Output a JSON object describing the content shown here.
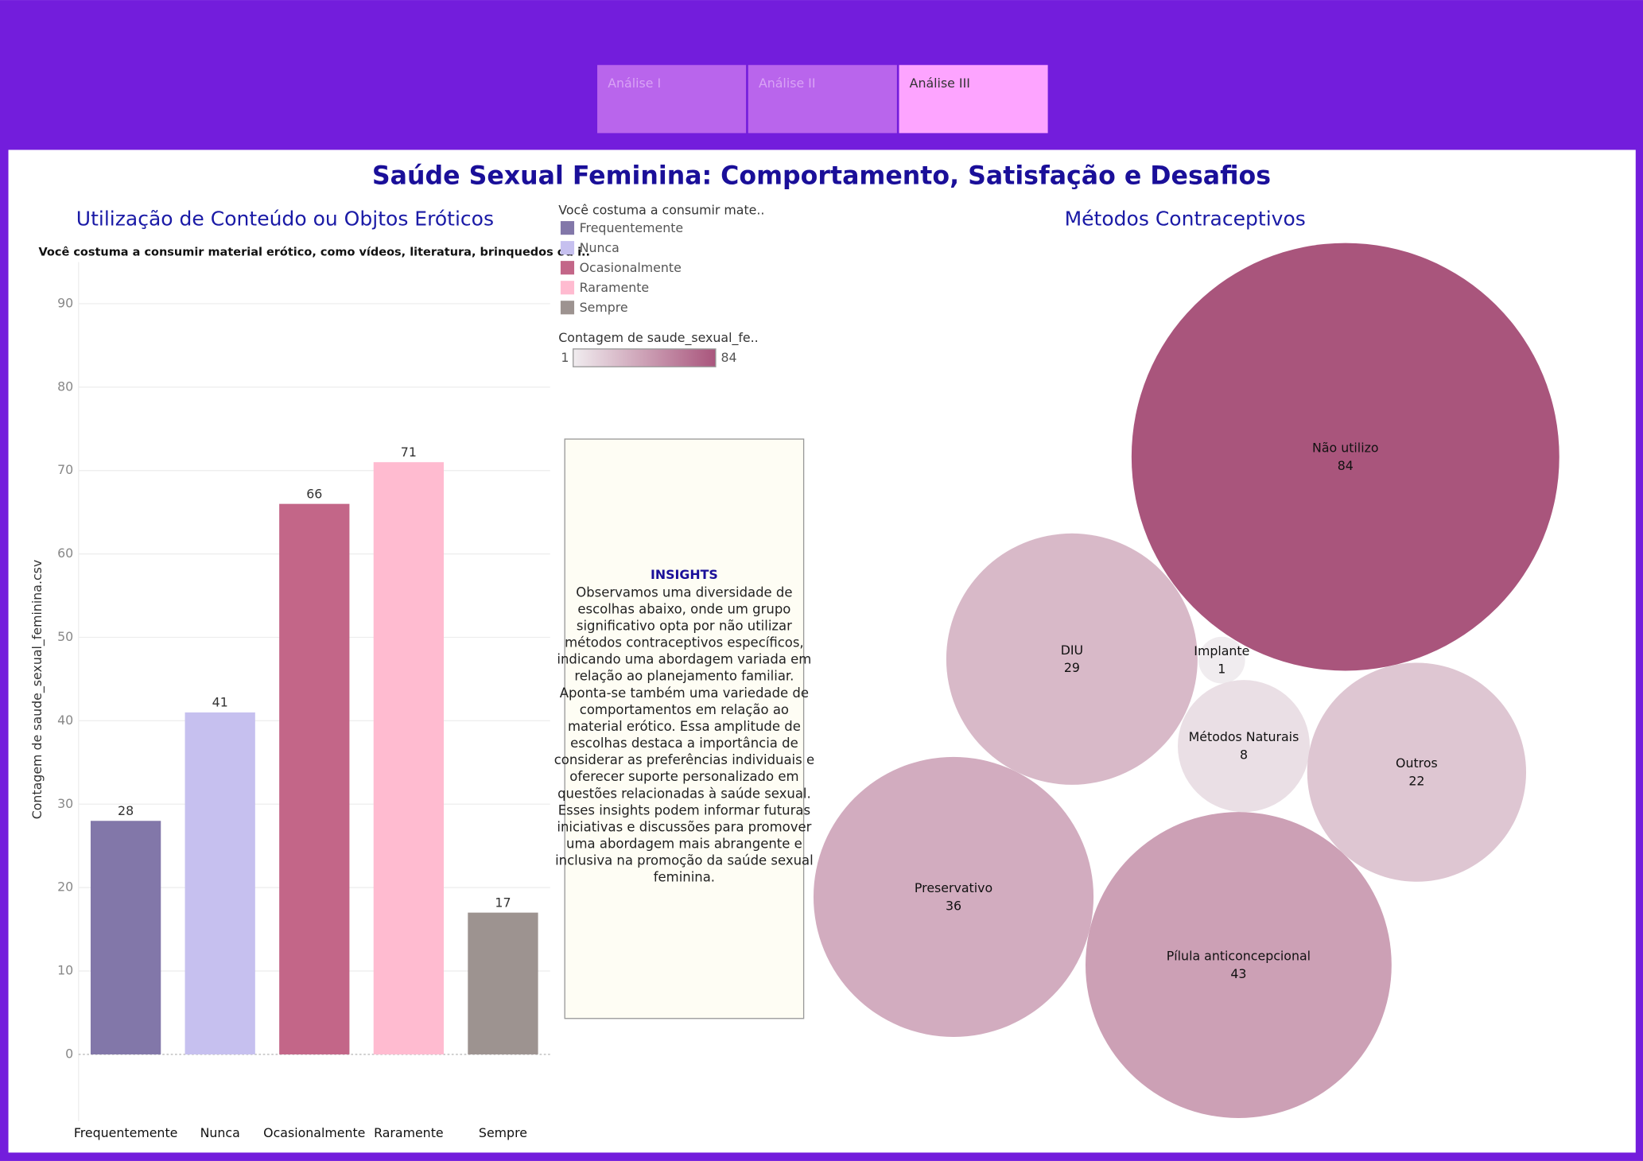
{
  "tabs": [
    "Análise I",
    "Análise II",
    "Análise III"
  ],
  "title": "Saúde Sexual Feminina: Comportamento, Satisfação e Desafios",
  "chart_data": [
    {
      "type": "bar",
      "title": "Utilização de Conteúdo ou Objtos Eróticos",
      "subtitle": "Você costuma a consumir material erótico, como vídeos, literatura, brinquedos ou i..",
      "y_label": "Contagem de saude_sexual_feminina.csv",
      "categories": [
        "Frequentemente",
        "Nunca",
        "Ocasionalmente",
        "Raramente",
        "Sempre"
      ],
      "values": [
        28,
        41,
        66,
        71,
        17
      ],
      "colors": [
        "#8277a9",
        "#c6c0ef",
        "#c36688",
        "#ffbbd0",
        "#9d9390"
      ],
      "ylim": [
        -8,
        95
      ],
      "yticks": [
        0,
        10,
        20,
        30,
        40,
        50,
        60,
        70,
        80,
        90
      ],
      "grid": true,
      "legend_title": "Você costuma a consumir mate.."
    },
    {
      "type": "bubble",
      "title": "Métodos Contraceptivos",
      "categories": [
        "Não utilizo",
        "DIU",
        "Implante",
        "Métodos Naturais",
        "Outros",
        "Preservativo",
        "Pílula anticoncepcional"
      ],
      "values": [
        84,
        29,
        1,
        8,
        22,
        36,
        43
      ],
      "color_legend_title": "Contagem de saude_sexual_fe..",
      "colorlim": [
        1,
        84
      ],
      "color_range": [
        "#f0ecef",
        "#a9557c"
      ]
    }
  ],
  "insights": {
    "title": "INSIGHTS",
    "lines": [
      "Observamos uma diversidade de",
      "escolhas abaixo, onde um grupo",
      "significativo opta por não utilizar",
      "métodos contraceptivos específicos,",
      "indicando uma abordagem variada em",
      "relação ao planejamento familiar.",
      "Aponta-se também uma variedade de",
      "comportamentos em relação ao",
      "material erótico. Essa amplitude de",
      "escolhas destaca a importância de",
      "considerar as preferências individuais e",
      "oferecer suporte personalizado em",
      "questões relacionadas à saúde sexual.",
      "Esses insights podem informar futuras",
      "iniciativas e discussões para promover",
      "uma abordagem mais abrangente e",
      "inclusiva na promoção da saúde sexual",
      "feminina."
    ]
  }
}
